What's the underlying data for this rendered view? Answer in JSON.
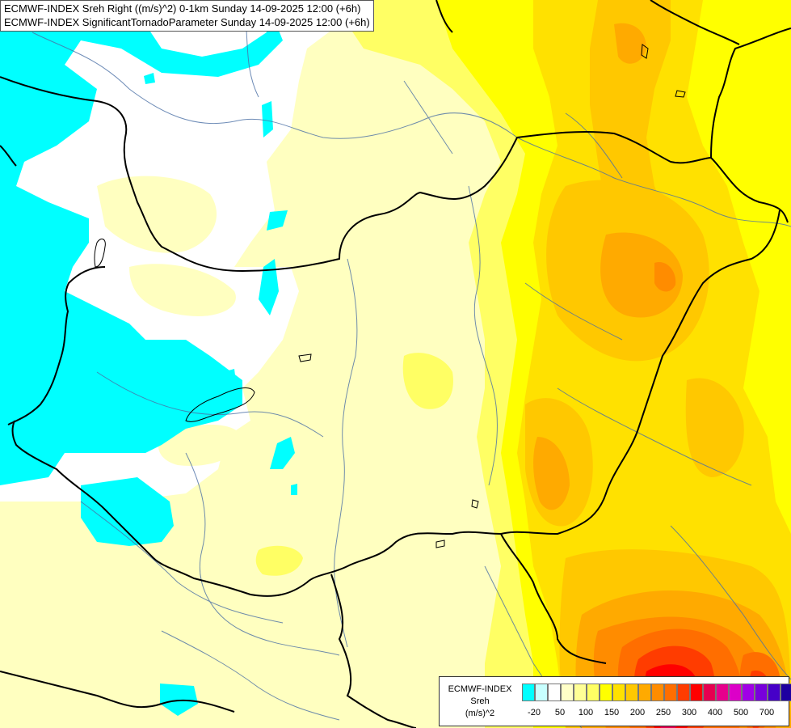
{
  "title": {
    "line1": "ECMWF-INDEX Sreh Right ((m/s)^2) 0-1km Sunday 14-09-2025 12:00 (+6h)",
    "line2": "ECMWF-INDEX SignificantTornadoParameter Sunday 14-09-2025 12:00 (+6h)"
  },
  "legend": {
    "line1": "ECMWF-INDEX",
    "line2": "Sreh",
    "line3": "(m/s)^2",
    "colors": [
      "#00ffff",
      "#c8ffff",
      "#ffffff",
      "#ffffc8",
      "#ffff96",
      "#ffff64",
      "#ffff00",
      "#ffe100",
      "#ffc800",
      "#ffaa00",
      "#ff8c00",
      "#ff6e00",
      "#ff3c00",
      "#ff0000",
      "#e60050",
      "#e6008c",
      "#dc00c8",
      "#a000e6",
      "#7800dc",
      "#4600c8",
      "#1e00a0",
      "#000078"
    ],
    "ticks": [
      "-20",
      "50",
      "100",
      "150",
      "200",
      "250",
      "300",
      "400",
      "500",
      "700"
    ]
  }
}
